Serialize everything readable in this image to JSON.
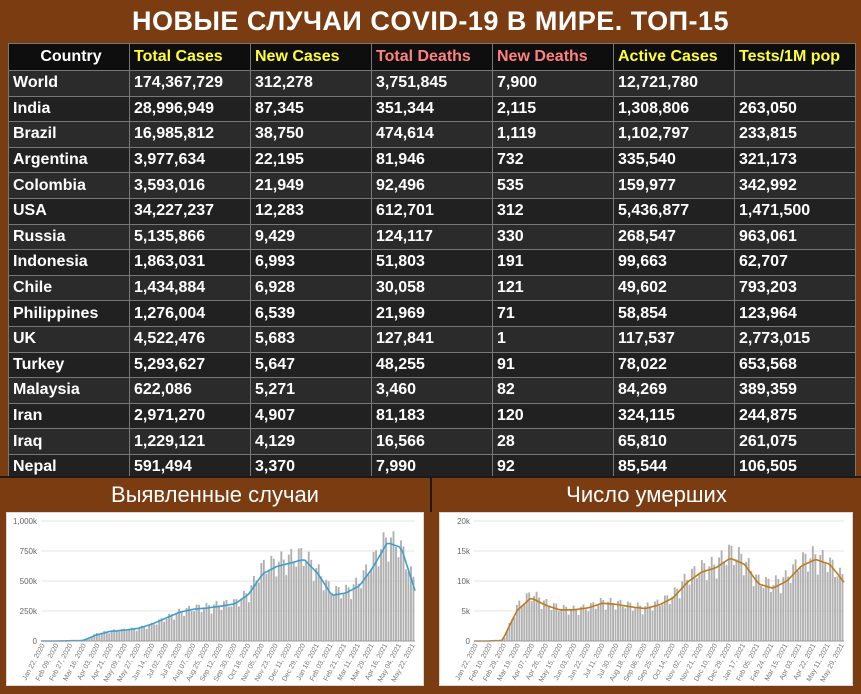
{
  "title": "НОВЫЕ СЛУЧАИ COVID-19 В МИРЕ. ТОП-15",
  "colors": {
    "header_white": "#ffffff",
    "header_yellow": "#ffff33",
    "header_pink": "#ff8080",
    "chart_cases_line": "#3a9fd0",
    "chart_deaths_line": "#c07a1a",
    "bar_gray": "#a8a8a8"
  },
  "table": {
    "columns": [
      {
        "label": "Country",
        "color": "#ffffff"
      },
      {
        "label": "Total Cases",
        "color": "#ffff33"
      },
      {
        "label": "New Cases",
        "color": "#ffff33"
      },
      {
        "label": "Total Deaths",
        "color": "#ff8080"
      },
      {
        "label": "New Deaths",
        "color": "#ff8080"
      },
      {
        "label": "Active Cases",
        "color": "#ffff33"
      },
      {
        "label": "Tests/1M pop",
        "color": "#ffff33"
      }
    ],
    "rows": [
      [
        "World",
        "174,367,729",
        "312,278",
        "3,751,845",
        "7,900",
        "12,721,780",
        ""
      ],
      [
        "India",
        "28,996,949",
        "87,345",
        "351,344",
        "2,115",
        "1,308,806",
        "263,050"
      ],
      [
        "Brazil",
        "16,985,812",
        "38,750",
        "474,614",
        "1,119",
        "1,102,797",
        "233,815"
      ],
      [
        "Argentina",
        "3,977,634",
        "22,195",
        "81,946",
        "732",
        "335,540",
        "321,173"
      ],
      [
        "Colombia",
        "3,593,016",
        "21,949",
        "92,496",
        "535",
        "159,977",
        "342,992"
      ],
      [
        "USA",
        "34,227,237",
        "12,283",
        "612,701",
        "312",
        "5,436,877",
        "1,471,500"
      ],
      [
        "Russia",
        "5,135,866",
        "9,429",
        "124,117",
        "330",
        "268,547",
        "963,061"
      ],
      [
        "Indonesia",
        "1,863,031",
        "6,993",
        "51,803",
        "191",
        "99,663",
        "62,707"
      ],
      [
        "Chile",
        "1,434,884",
        "6,928",
        "30,058",
        "121",
        "49,602",
        "793,203"
      ],
      [
        "Philippines",
        "1,276,004",
        "6,539",
        "21,969",
        "71",
        "58,854",
        "123,964"
      ],
      [
        "UK",
        "4,522,476",
        "5,683",
        "127,841",
        "1",
        "117,537",
        "2,773,015"
      ],
      [
        "Turkey",
        "5,293,627",
        "5,647",
        "48,255",
        "91",
        "78,022",
        "653,568"
      ],
      [
        "Malaysia",
        "622,086",
        "5,271",
        "3,460",
        "82",
        "84,269",
        "389,359"
      ],
      [
        "Iran",
        "2,971,270",
        "4,907",
        "81,183",
        "120",
        "324,115",
        "244,875"
      ],
      [
        "Iraq",
        "1,229,121",
        "4,129",
        "16,566",
        "28",
        "65,810",
        "261,075"
      ],
      [
        "Nepal",
        "591,494",
        "3,370",
        "7,990",
        "92",
        "85,544",
        "106,505"
      ]
    ]
  },
  "panels": {
    "cases_title": "Выявленные случаи",
    "deaths_title": "Число умерших"
  },
  "chart_data": [
    {
      "type": "bar",
      "title": "Выявленные случаи",
      "ylim": [
        0,
        1000000
      ],
      "yticks": [
        "0",
        "250k",
        "500k",
        "750k",
        "1,000k"
      ],
      "ytick_values": [
        0,
        250000,
        500000,
        750000,
        1000000
      ],
      "xticks": [
        "Jan 22, 2020",
        "Feb 09, 2020",
        "Feb 27, 2020",
        "Mar 16, 2020",
        "Apr 03, 2020",
        "Apr 21, 2020",
        "May 09, 2020",
        "May 27, 2020",
        "Jun 14, 2020",
        "Jul 02, 2020",
        "Jul 20, 2020",
        "Aug 07, 2020",
        "Aug 25, 2020",
        "Sep 12, 2020",
        "Sep 30, 2020",
        "Oct 18, 2020",
        "Nov 05, 2020",
        "Nov 23, 2020",
        "Dec 11, 2020",
        "Dec 29, 2020",
        "Jan 16, 2021",
        "Feb 03, 2021",
        "Feb 21, 2021",
        "Mar 11, 2021",
        "Mar 29, 2021",
        "Apr 16, 2021",
        "May 04, 2021",
        "May 22, 2021"
      ],
      "series": [
        {
          "kind": "bars",
          "values": [
            0,
            0,
            2000,
            3000,
            60000,
            80000,
            90000,
            100000,
            130000,
            180000,
            230000,
            260000,
            270000,
            290000,
            300000,
            380000,
            580000,
            620000,
            650000,
            680000,
            560000,
            400000,
            390000,
            460000,
            620000,
            800000,
            760000,
            480000
          ]
        },
        {
          "kind": "line",
          "values": [
            0,
            0,
            2000,
            3000,
            50000,
            80000,
            90000,
            105000,
            140000,
            190000,
            240000,
            265000,
            275000,
            290000,
            310000,
            390000,
            560000,
            620000,
            650000,
            680000,
            560000,
            380000,
            400000,
            460000,
            620000,
            820000,
            780000,
            420000
          ]
        }
      ]
    },
    {
      "type": "bar",
      "title": "Число умерших",
      "ylim": [
        0,
        20000
      ],
      "yticks": [
        "0",
        "5k",
        "10k",
        "15k",
        "20k"
      ],
      "ytick_values": [
        0,
        5000,
        10000,
        15000,
        20000
      ],
      "xticks": [
        "Jan 22, 2020",
        "Feb 10, 2020",
        "Feb 29, 2020",
        "Mar 19, 2020",
        "Apr 07, 2020",
        "Apr 26, 2020",
        "May 15, 2020",
        "Jun 03, 2020",
        "Jun 22, 2020",
        "Jul 11, 2020",
        "Jul 30, 2020",
        "Aug 18, 2020",
        "Sep 06, 2020",
        "Sep 25, 2020",
        "Oct 14, 2020",
        "Nov 02, 2020",
        "Nov 21, 2020",
        "Dec 10, 2020",
        "Dec 29, 2020",
        "Jan 17, 2021",
        "Feb 05, 2021",
        "Feb 24, 2021",
        "Mar 15, 2021",
        "Apr 03, 2021",
        "Apr 22, 2021",
        "May 11, 2021",
        "May 29, 2021"
      ],
      "series": [
        {
          "kind": "bars",
          "values": [
            0,
            0,
            200,
            5500,
            7500,
            6000,
            5200,
            5000,
            5300,
            6200,
            6000,
            5600,
            5300,
            6000,
            7200,
            10000,
            11500,
            12000,
            14000,
            13000,
            9500,
            9000,
            10000,
            12500,
            13500,
            12500,
            10000
          ]
        },
        {
          "kind": "line",
          "values": [
            0,
            0,
            100,
            5000,
            7200,
            6000,
            5200,
            5200,
            5500,
            6300,
            6100,
            5700,
            5400,
            6000,
            7200,
            9800,
            11500,
            12200,
            13800,
            12800,
            9500,
            8800,
            10000,
            12500,
            13600,
            12800,
            9800
          ]
        }
      ]
    }
  ]
}
